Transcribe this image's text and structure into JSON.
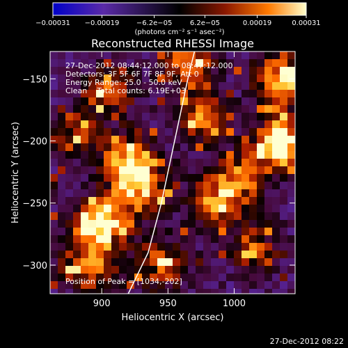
{
  "chart_data": {
    "type": "heatmap",
    "title": "Reconstructed RHESSI Image",
    "xlabel": "Heliocentric X (arcsec)",
    "ylabel": "Heliocentric Y (arcsec)",
    "xlim": [
      861,
      1046
    ],
    "ylim": [
      -323,
      -128
    ],
    "x_ticks": [
      900,
      950,
      1000
    ],
    "y_ticks": [
      -150,
      -200,
      -250,
      -300
    ],
    "x_tick_labels": [
      "900",
      "950",
      "1000"
    ],
    "y_tick_labels": [
      "−150",
      "−200",
      "−250",
      "−300"
    ],
    "grid": false,
    "colorbar": {
      "range": [
        -0.00031,
        0.00031
      ],
      "tick_values": [
        -0.00031,
        -0.00019,
        -6.2e-05,
        6.2e-05,
        0.00019,
        0.00031
      ],
      "tick_labels": [
        "−0.00031",
        "−0.00019",
        "−6.2e−05",
        "6.2e−05",
        "0.00019",
        "0.00031"
      ],
      "unit_label": "(photons cm⁻² s⁻¹ asec⁻²)",
      "colors": [
        "#0000c8",
        "#5a2aa8",
        "#000000",
        "#8a1800",
        "#ff7a00",
        "#ffffcc"
      ]
    },
    "annotations": [
      "27-Dec-2012 08:44:12.000 to 08:47:12.000",
      "Detectors: 3F 5F 6F 7F 8F 9F, Att 0",
      "Energy Range: 25.0 - 50.0 keV",
      "Clean    Total counts: 6.19E+03"
    ],
    "peak_label": "Position of Peak = [1034,-202]",
    "limb_curve": [
      [
        920,
        -323
      ],
      [
        935,
        -290
      ],
      [
        945,
        -250
      ],
      [
        955,
        -200
      ],
      [
        965,
        -150
      ],
      [
        970,
        -128
      ]
    ],
    "hotspots": [
      {
        "x": 899,
        "y": -267,
        "amp": 1.0
      },
      {
        "x": 1036,
        "y": -202,
        "amp": 1.0
      },
      {
        "x": 1036,
        "y": -150,
        "amp": 0.9
      },
      {
        "x": 890,
        "y": -300,
        "amp": 0.6
      },
      {
        "x": 920,
        "y": -215,
        "amp": 0.75
      },
      {
        "x": 930,
        "y": -240,
        "amp": 0.7
      },
      {
        "x": 905,
        "y": -160,
        "amp": 0.5
      },
      {
        "x": 975,
        "y": -180,
        "amp": 0.6
      },
      {
        "x": 985,
        "y": -250,
        "amp": 0.55
      },
      {
        "x": 1005,
        "y": -230,
        "amp": 0.6
      },
      {
        "x": 945,
        "y": -300,
        "amp": 0.5
      },
      {
        "x": 1015,
        "y": -285,
        "amp": 0.45
      },
      {
        "x": 965,
        "y": -135,
        "amp": 0.6
      },
      {
        "x": 880,
        "y": -195,
        "amp": 0.4
      }
    ]
  },
  "footer": {
    "date_stamp": "27-Dec-2012 08:22"
  }
}
